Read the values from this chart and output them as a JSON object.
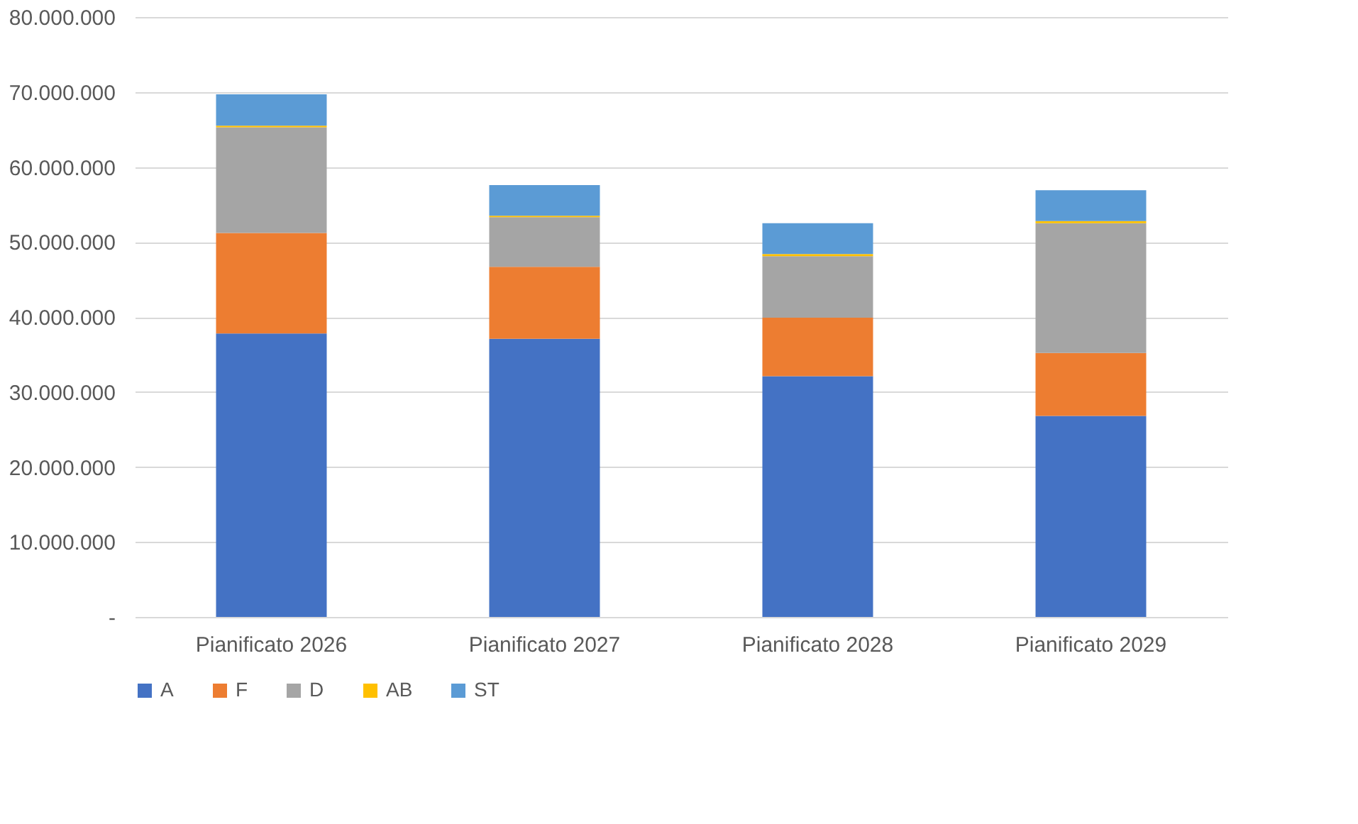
{
  "chart_data": {
    "type": "bar",
    "stacked": true,
    "categories": [
      "Pianificato 2026",
      "Pianificato 2027",
      "Pianificato 2028",
      "Pianificato 2029"
    ],
    "series": [
      {
        "name": "A",
        "color": "#4472c4",
        "values": [
          37800000,
          37100000,
          32100000,
          26800000
        ]
      },
      {
        "name": "F",
        "color": "#ed7d31",
        "values": [
          13400000,
          9600000,
          7800000,
          8400000
        ]
      },
      {
        "name": "D",
        "color": "#a5a5a5",
        "values": [
          14100000,
          6600000,
          8200000,
          17300000
        ]
      },
      {
        "name": "AB",
        "color": "#ffc000",
        "values": [
          200000,
          200000,
          300000,
          300000
        ]
      },
      {
        "name": "ST",
        "color": "#5b9bd5",
        "values": [
          4200000,
          4100000,
          4100000,
          4100000
        ]
      }
    ],
    "ylim": [
      0,
      80000000
    ],
    "yticks": [
      {
        "value": 0,
        "label": "-"
      },
      {
        "value": 10000000,
        "label": "10.000.000"
      },
      {
        "value": 20000000,
        "label": "20.000.000"
      },
      {
        "value": 30000000,
        "label": "30.000.000"
      },
      {
        "value": 40000000,
        "label": "40.000.000"
      },
      {
        "value": 50000000,
        "label": "50.000.000"
      },
      {
        "value": 60000000,
        "label": "60.000.000"
      },
      {
        "value": 70000000,
        "label": "70.000.000"
      },
      {
        "value": 80000000,
        "label": "80.000.000"
      }
    ],
    "grid": "y",
    "legend": "bottom"
  }
}
